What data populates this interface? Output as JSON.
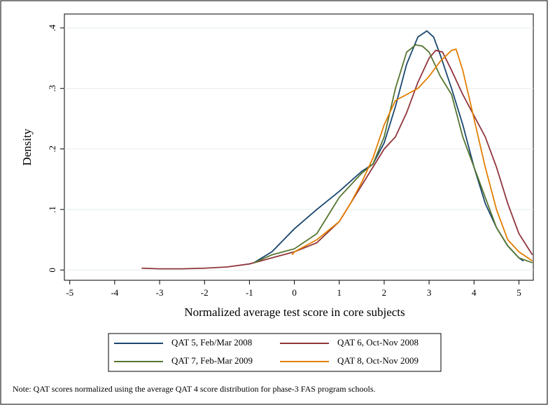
{
  "chart_data": {
    "type": "line",
    "xlabel": "Normalized average test score in core subjects",
    "ylabel": "Density",
    "note": "Note: QAT scores normalized using the average QAT 4 score distribution for phase-3 FAS program schools.",
    "xlim": [
      -5.12,
      5.32
    ],
    "ylim": [
      -0.017,
      0.423
    ],
    "xticks": [
      -5,
      -4,
      -3,
      -2,
      -1,
      0,
      1,
      2,
      3,
      4,
      5
    ],
    "yticks": [
      0,
      {
        "value": 0.1,
        "label": ".1"
      },
      {
        "value": 0.2,
        "label": ".2"
      },
      {
        "value": 0.3,
        "label": ".3"
      },
      {
        "value": 0.4,
        "label": ".4"
      }
    ],
    "grid": true,
    "grid_color": "#e3ecef",
    "series": [
      {
        "name": "QAT 5, Feb/Mar 2008",
        "color": "#1a476f",
        "x": [
          -0.9,
          -0.5,
          0,
          0.5,
          1,
          1.5,
          1.75,
          2,
          2.25,
          2.5,
          2.75,
          2.95,
          3.1,
          3.25,
          3.5,
          3.75,
          4,
          4.25,
          4.5,
          4.75,
          5,
          5.1
        ],
        "values": [
          0.012,
          0.03,
          0.068,
          0.1,
          0.13,
          0.163,
          0.175,
          0.21,
          0.27,
          0.34,
          0.385,
          0.395,
          0.385,
          0.355,
          0.3,
          0.24,
          0.17,
          0.11,
          0.07,
          0.04,
          0.02,
          0.015
        ]
      },
      {
        "name": "QAT 6, Oct-Nov 2008",
        "color": "#90353b",
        "x": [
          -3.4,
          -3,
          -2.5,
          -2,
          -1.5,
          -1,
          -0.5,
          0,
          0.5,
          1,
          1.5,
          2,
          2.25,
          2.5,
          2.75,
          3,
          3.15,
          3.3,
          3.5,
          3.75,
          4,
          4.25,
          4.5,
          4.75,
          5,
          5.3
        ],
        "values": [
          0.003,
          0.002,
          0.002,
          0.003,
          0.005,
          0.01,
          0.02,
          0.03,
          0.045,
          0.08,
          0.14,
          0.2,
          0.22,
          0.26,
          0.31,
          0.35,
          0.363,
          0.36,
          0.33,
          0.29,
          0.255,
          0.22,
          0.17,
          0.11,
          0.06,
          0.025
        ]
      },
      {
        "name": "QAT 7, Feb-Mar 2009",
        "color": "#55752f",
        "x": [
          -0.9,
          -0.5,
          0,
          0.5,
          0.75,
          1,
          1.5,
          1.75,
          2,
          2.25,
          2.5,
          2.7,
          2.85,
          3,
          3.25,
          3.5,
          3.75,
          4,
          4.25,
          4.5,
          4.75,
          5,
          5.3
        ],
        "values": [
          0.012,
          0.025,
          0.035,
          0.06,
          0.09,
          0.12,
          0.16,
          0.175,
          0.22,
          0.3,
          0.36,
          0.372,
          0.37,
          0.36,
          0.32,
          0.29,
          0.22,
          0.17,
          0.12,
          0.07,
          0.04,
          0.02,
          0.012
        ]
      },
      {
        "name": "QAT 8, Oct-Nov 2009",
        "color": "#e37e00",
        "x": [
          -0.05,
          0,
          0.5,
          1,
          1.25,
          1.5,
          1.75,
          2,
          2.25,
          2.5,
          2.75,
          3,
          3.25,
          3.5,
          3.6,
          3.75,
          4,
          4.25,
          4.5,
          4.75,
          5,
          5.3
        ],
        "values": [
          0.025,
          0.03,
          0.05,
          0.08,
          0.11,
          0.145,
          0.185,
          0.24,
          0.28,
          0.29,
          0.3,
          0.32,
          0.345,
          0.363,
          0.365,
          0.33,
          0.25,
          0.17,
          0.1,
          0.05,
          0.03,
          0.015
        ]
      }
    ]
  }
}
